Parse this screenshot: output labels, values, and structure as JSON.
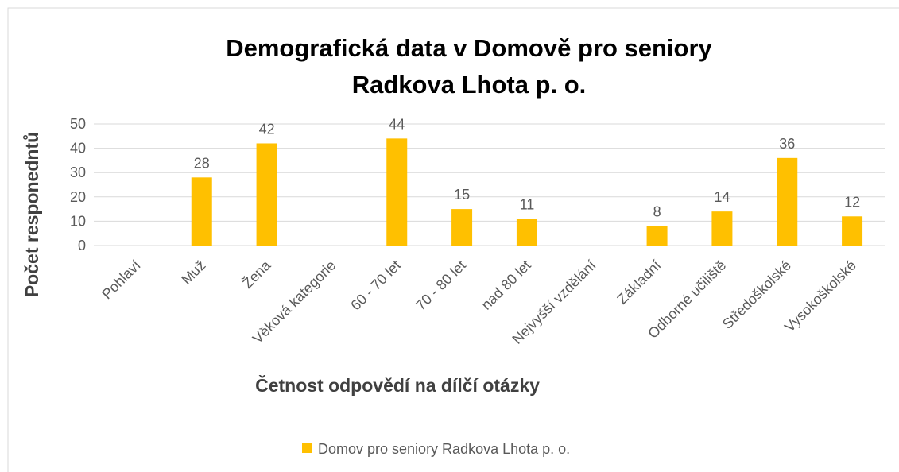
{
  "chart_data": {
    "type": "bar",
    "title": "Demografická data v Domově pro seniory Radkova Lhota p. o.",
    "x_label": "Četnost odpovědí na dílčí otázky",
    "y_label": "Počet responedntů",
    "categories": [
      "Pohlaví",
      "Muž",
      "Žena",
      "Věková kategorie",
      "60 - 70 let",
      "70 - 80 let",
      "nad 80 let",
      "Nejvyšší vzdělání",
      "Základní",
      "Odborné učiliště",
      "Středoškolské",
      "Vysokoškolské"
    ],
    "series": [
      {
        "name": "Domov pro seniory Radkova Lhota p. o.",
        "color": "#ffc000",
        "values": [
          null,
          28,
          42,
          null,
          44,
          15,
          11,
          null,
          8,
          14,
          36,
          12
        ]
      }
    ],
    "ylim": [
      0,
      50
    ],
    "yticks": [
      0,
      10,
      20,
      30,
      40,
      50
    ],
    "grid": true,
    "legend": "bottom"
  }
}
